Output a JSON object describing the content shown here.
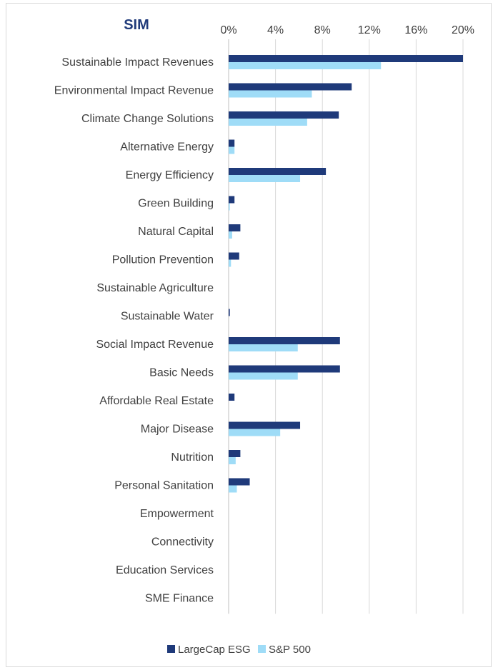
{
  "chart_data": {
    "type": "bar",
    "orientation": "horizontal",
    "title": "SIM",
    "xlabel": "",
    "ylabel": "",
    "xlim": [
      0,
      20
    ],
    "x_ticks": [
      "0%",
      "4%",
      "8%",
      "12%",
      "16%",
      "20%"
    ],
    "x_tick_values": [
      0,
      4,
      8,
      12,
      16,
      20
    ],
    "grid": true,
    "legend_position": "bottom",
    "categories": [
      "Sustainable Impact Revenues",
      "Environmental Impact Revenue",
      "Climate Change Solutions",
      "Alternative Energy",
      "Energy Efficiency",
      "Green Building",
      "Natural Capital",
      "Pollution Prevention",
      "Sustainable Agriculture",
      "Sustainable Water",
      "Social Impact Revenue",
      "Basic Needs",
      "Affordable Real Estate",
      "Major Disease",
      "Nutrition",
      "Personal Sanitation",
      "Empowerment",
      "Connectivity",
      "Education Services",
      "SME Finance"
    ],
    "series": [
      {
        "name": "LargeCap ESG",
        "color": "#1f3a7a",
        "values": [
          20.0,
          10.5,
          9.4,
          0.5,
          8.3,
          0.5,
          1.0,
          0.9,
          0.0,
          0.1,
          9.5,
          9.5,
          0.5,
          6.1,
          1.0,
          1.8,
          0.0,
          0.0,
          0.0,
          0.0
        ]
      },
      {
        "name": "S&P 500",
        "color": "#9fdcf7",
        "values": [
          13.0,
          7.1,
          6.7,
          0.5,
          6.1,
          0.1,
          0.3,
          0.2,
          0.0,
          0.0,
          5.9,
          5.9,
          0.0,
          4.4,
          0.6,
          0.7,
          0.0,
          0.0,
          0.0,
          0.0
        ]
      }
    ]
  },
  "colors": {
    "title": "#1f3a7a",
    "gridline": "#d9d9d9",
    "axis": "#bfbfbf",
    "text": "#404040"
  }
}
